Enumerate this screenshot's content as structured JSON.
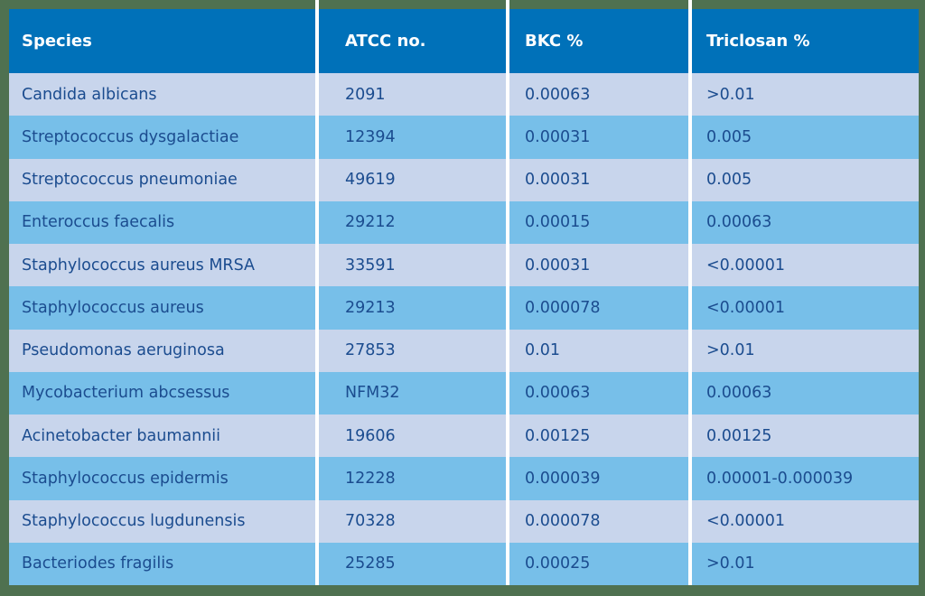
{
  "chart_data": {
    "type": "table",
    "columns": [
      "Species",
      "ATCC no.",
      "BKC %",
      "Triclosan %"
    ],
    "rows": [
      [
        "Candida albicans",
        "2091",
        "0.00063",
        ">0.01"
      ],
      [
        "Streptococcus dysgalactiae",
        "12394",
        "0.00031",
        "0.005"
      ],
      [
        "Streptococcus pneumoniae",
        "49619",
        "0.00031",
        "0.005"
      ],
      [
        "Enteroccus faecalis",
        "29212",
        "0.00015",
        "0.00063"
      ],
      [
        "Staphylococcus aureus MRSA",
        "33591",
        "0.00031",
        "<0.00001"
      ],
      [
        "Staphylococcus aureus",
        "29213",
        "0.000078",
        "<0.00001"
      ],
      [
        "Pseudomonas aeruginosa",
        "27853",
        "0.01",
        ">0.01"
      ],
      [
        "Mycobacterium abcsessus",
        "NFM32",
        "0.00063",
        "0.00063"
      ],
      [
        "Acinetobacter baumannii",
        "19606",
        "0.00125",
        "0.00125"
      ],
      [
        "Staphylococcus epidermis",
        "12228",
        "0.000039",
        "0.00001-0.000039"
      ],
      [
        "Staphylococcus lugdunensis",
        "70328",
        "0.000078",
        "<0.00001"
      ],
      [
        "Bacteriodes fragilis",
        "25285",
        "0.00025",
        ">0.01"
      ]
    ]
  },
  "colors": {
    "border_green": "#4F7150",
    "header_blue": "#0071B9",
    "row_light": "#C8D5EC",
    "row_medium": "#77BFE9",
    "header_text": "#FFFFFF",
    "cell_text": "#1B4C8F",
    "separator_white": "#FFFFFF"
  }
}
